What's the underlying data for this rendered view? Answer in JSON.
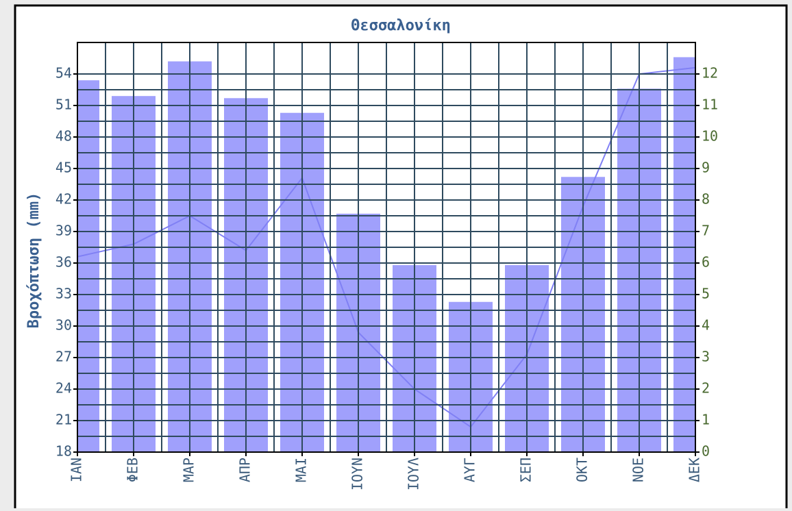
{
  "chart_data": {
    "type": "bar_line",
    "title": "Θεσσαλονίκη",
    "y_label": "Βροχόπτωση (mm)",
    "categories": [
      "ΙΑΝ",
      "ΦΕΒ",
      "ΜΑΡ",
      "ΑΠΡ",
      "ΜΑΙ",
      "ΙΟΥΝ",
      "ΙΟΥΛ",
      "ΑΥΓ",
      "ΣΕΠ",
      "ΟΚΤ",
      "ΝΟΕ",
      "ΔΕΚ"
    ],
    "series": [
      {
        "color": "#a0a0fc",
        "values": [
          53.4,
          51.9,
          55.2,
          51.7,
          50.3,
          40.7,
          35.8,
          32.3,
          35.8,
          44.2,
          52.6,
          55.6
        ]
      },
      {
        "color": "#8080f4",
        "axis": "y2",
        "values": [
          6.2,
          6.6,
          7.5,
          6.4,
          8.7,
          3.8,
          2.0,
          0.8,
          3.1,
          7.8,
          12.0,
          12.2
        ]
      }
    ],
    "ylim": [
      18,
      57
    ],
    "yticks": [
      18,
      21,
      24,
      27,
      30,
      33,
      36,
      39,
      42,
      45,
      48,
      51,
      54
    ],
    "y2lim": [
      0,
      13
    ],
    "y2ticks": [
      0,
      1,
      2,
      3,
      4,
      5,
      6,
      7,
      8,
      9,
      10,
      11,
      12
    ],
    "grid": true
  }
}
